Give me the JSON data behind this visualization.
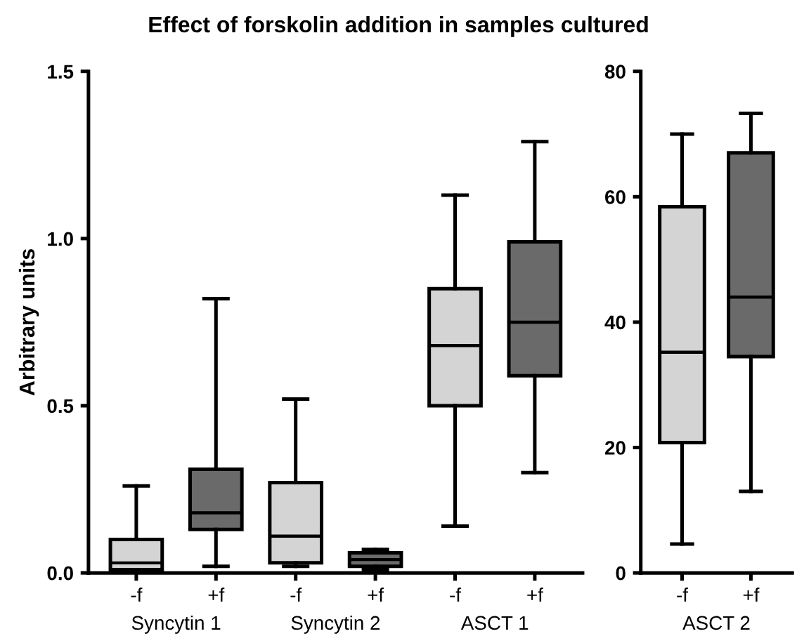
{
  "chart_data": [
    {
      "type": "box",
      "title": "Effect of forskolin addition in samples cultured",
      "ylabel": "Arbitrary units",
      "categories": [
        "-f",
        "+f",
        "-f",
        "+f",
        "-f",
        "+f"
      ],
      "annotations": [
        "Syncytin 1",
        "Syncytin 2",
        "ASCT 1"
      ],
      "colors": [
        "#d4d4d4",
        "#6a6a6a",
        "#d4d4d4",
        "#6a6a6a",
        "#d4d4d4",
        "#6a6a6a"
      ],
      "boxes": [
        {
          "low": 0.01,
          "q1": 0.01,
          "median": 0.03,
          "q3": 0.1,
          "high": 0.26
        },
        {
          "low": 0.02,
          "q1": 0.13,
          "median": 0.18,
          "q3": 0.31,
          "high": 0.82
        },
        {
          "low": 0.02,
          "q1": 0.03,
          "median": 0.11,
          "q3": 0.27,
          "high": 0.52
        },
        {
          "low": 0.01,
          "q1": 0.02,
          "median": 0.04,
          "q3": 0.06,
          "high": 0.07
        },
        {
          "low": 0.14,
          "q1": 0.5,
          "median": 0.68,
          "q3": 0.85,
          "high": 1.13
        },
        {
          "low": 0.3,
          "q1": 0.59,
          "median": 0.75,
          "q3": 0.99,
          "high": 1.29
        }
      ],
      "ylim": [
        0,
        1.5
      ],
      "yticks": [
        {
          "value": 0,
          "label": "0.0"
        },
        0.5,
        {
          "value": 1,
          "label": "1.0"
        },
        1.5
      ],
      "grid": false,
      "legend": false
    },
    {
      "type": "box",
      "categories": [
        "-f",
        "+f"
      ],
      "annotations": [
        "ASCT 2"
      ],
      "colors": [
        "#d4d4d4",
        "#6a6a6a"
      ],
      "boxes": [
        {
          "low": 4.6,
          "q1": 20.8,
          "median": 35.2,
          "q3": 58.4,
          "high": 70
        },
        {
          "low": 13,
          "q1": 34.5,
          "median": 44,
          "q3": 67,
          "high": 73.3
        }
      ],
      "ylim": [
        0,
        80
      ],
      "yticks": [
        0,
        20,
        40,
        60,
        80
      ],
      "grid": false,
      "legend": false
    }
  ]
}
